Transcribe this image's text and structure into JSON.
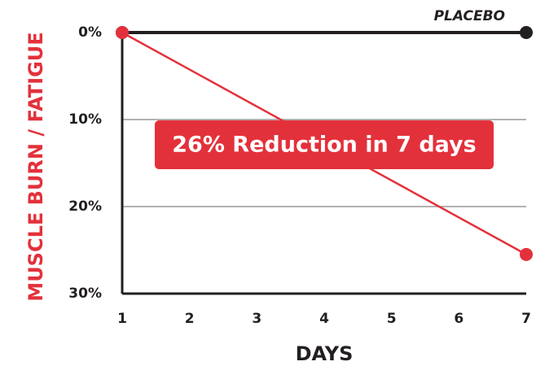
{
  "chart_data": {
    "type": "line",
    "y_label": "MUSCLE BURN / FATIGUE",
    "x_label": "DAYS",
    "annotation": "26% Reduction in 7 days",
    "x": [
      1,
      7
    ],
    "series": [
      {
        "name": "PLACEBO",
        "color": "#231f20",
        "values": [
          0,
          0
        ]
      },
      {
        "color": "#e3313b",
        "values": [
          0,
          25.5
        ]
      }
    ],
    "xlim": [
      1,
      7
    ],
    "xticks": [
      1,
      2,
      3,
      4,
      5,
      6,
      7
    ],
    "ylim": [
      0,
      30
    ],
    "y_inverted": true,
    "yticks": [
      {
        "value": 0,
        "label": "0%"
      },
      {
        "value": 10,
        "label": "10%"
      },
      {
        "value": 20,
        "label": "20%"
      },
      {
        "value": 30,
        "label": "30%"
      }
    ],
    "grid": true
  }
}
